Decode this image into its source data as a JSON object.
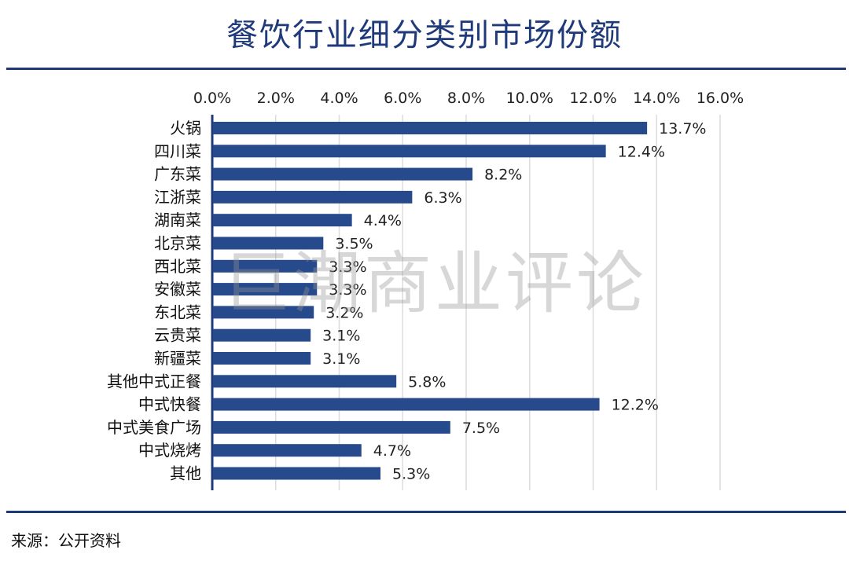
{
  "title": "餐饮行业细分类别市场份额",
  "source": "来源：公开资料",
  "watermark": "巨潮商业评论",
  "colors": {
    "bar": "#264a8c",
    "title": "#1f3a7a",
    "grid": "#dcdcdc",
    "axis": "#1f3a7a"
  },
  "chart_data": {
    "type": "bar",
    "orientation": "horizontal",
    "categories": [
      "火锅",
      "四川菜",
      "广东菜",
      "江浙菜",
      "湖南菜",
      "北京菜",
      "西北菜",
      "安徽菜",
      "东北菜",
      "云贵菜",
      "新疆菜",
      "其他中式正餐",
      "中式快餐",
      "中式美食广场",
      "中式烧烤",
      "其他"
    ],
    "values": [
      13.7,
      12.4,
      8.2,
      6.3,
      4.4,
      3.5,
      3.3,
      3.3,
      3.2,
      3.1,
      3.1,
      5.8,
      12.2,
      7.5,
      4.7,
      5.3
    ],
    "value_labels": [
      "13.7%",
      "12.4%",
      "8.2%",
      "6.3%",
      "4.4%",
      "3.5%",
      "3.3%",
      "3.3%",
      "3.2%",
      "3.1%",
      "3.1%",
      "5.8%",
      "12.2%",
      "7.5%",
      "4.7%",
      "5.3%"
    ],
    "x_ticks": [
      "0.0%",
      "2.0%",
      "4.0%",
      "6.0%",
      "8.0%",
      "10.0%",
      "12.0%",
      "14.0%",
      "16.0%"
    ],
    "xlim": [
      0,
      16
    ],
    "x_axis_position": "top",
    "grid": true,
    "legend": "none",
    "xlabel": "",
    "ylabel": ""
  }
}
